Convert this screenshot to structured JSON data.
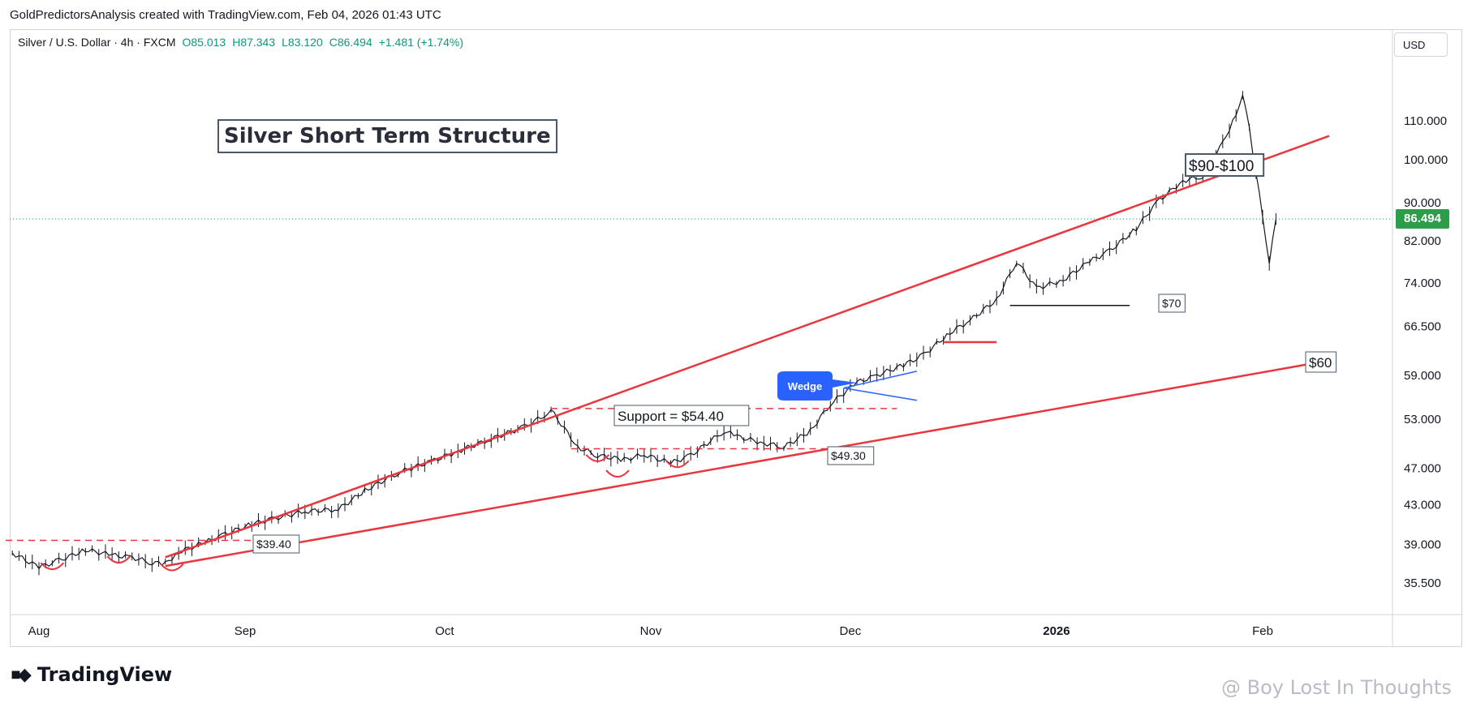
{
  "header": {
    "caption": "GoldPredictorsAnalysis created with TradingView.com, Feb 04, 2026 01:43 UTC"
  },
  "legend": {
    "symbol": "Silver / U.S. Dollar · 4h · FXCM",
    "open": "O85.013",
    "high": "H87.343",
    "low": "L83.120",
    "close": "C86.494",
    "change": "+1.481 (+1.74%)"
  },
  "currency_button": "USD",
  "last_price_label": "86.494",
  "brand": {
    "name": "TradingView"
  },
  "watermark": "@ Boy Lost In Thoughts",
  "colors": {
    "trendline": "#e8373e",
    "support": "#e8373e",
    "wedge": "#2962ff",
    "price_tag": "#2e9d4a",
    "candle_up": "#131722",
    "candle_down": "#131722"
  },
  "chart_data": {
    "type": "line",
    "title": "Silver Short Term Structure",
    "xlabel": "",
    "ylabel": "",
    "x_ticks": [
      "Aug",
      "Sep",
      "Oct",
      "Nov",
      "Dec",
      "2026",
      "Feb"
    ],
    "y_ticks": [
      35.5,
      39.0,
      43.0,
      47.0,
      53.0,
      59.0,
      66.5,
      74.0,
      82.0,
      90.0,
      100.0,
      110.0
    ],
    "y_tick_labels": [
      "35.500",
      "39.000",
      "43.000",
      "47.000",
      "53.000",
      "59.000",
      "66.500",
      "74.000",
      "82.000",
      "90.000",
      "100.000",
      "110.000"
    ],
    "ylim": [
      33.0,
      130.0
    ],
    "y_scale": "log",
    "grid": false,
    "series": [
      {
        "values_dates": [
          "2025-07-28",
          "2025-08-01",
          "2025-08-04",
          "2025-08-08",
          "2025-08-12",
          "2025-08-15",
          "2025-08-18",
          "2025-08-20",
          "2025-08-22",
          "2025-08-26",
          "2025-08-29",
          "2025-09-02",
          "2025-09-05",
          "2025-09-10",
          "2025-09-15",
          "2025-09-19",
          "2025-09-24",
          "2025-09-29",
          "2025-10-03",
          "2025-10-08",
          "2025-10-13",
          "2025-10-16",
          "2025-10-17",
          "2025-10-21",
          "2025-10-24",
          "2025-10-28",
          "2025-10-31",
          "2025-11-04",
          "2025-11-07",
          "2025-11-12",
          "2025-11-14",
          "2025-11-18",
          "2025-11-21",
          "2025-11-25",
          "2025-11-28",
          "2025-12-02",
          "2025-12-05",
          "2025-12-09",
          "2025-12-12",
          "2025-12-16",
          "2025-12-19",
          "2025-12-23",
          "2025-12-26",
          "2025-12-29",
          "2026-01-02",
          "2026-01-06",
          "2026-01-09",
          "2026-01-13",
          "2026-01-16",
          "2026-01-20",
          "2026-01-23",
          "2026-01-26",
          "2026-01-28",
          "2026-01-29",
          "2026-01-30",
          "2026-02-02",
          "2026-02-03"
        ],
        "values": [
          38.2,
          36.9,
          37.5,
          38.5,
          38.0,
          37.8,
          37.3,
          37.2,
          38.3,
          39.2,
          40.0,
          41.0,
          41.5,
          42.3,
          42.5,
          44.5,
          46.5,
          47.8,
          49.0,
          50.5,
          52.0,
          53.5,
          54.2,
          49.5,
          48.5,
          48.0,
          48.6,
          47.6,
          48.5,
          51.5,
          50.8,
          50.0,
          49.5,
          51.5,
          55.0,
          58.0,
          59.0,
          60.5,
          62.0,
          65.5,
          67.5,
          71.0,
          78.0,
          73.0,
          74.5,
          78.0,
          80.0,
          84.5,
          90.0,
          95.0,
          96.0,
          104.0,
          112.0,
          117.0,
          108.0,
          78.0,
          86.494
        ]
      }
    ],
    "annotations": [
      {
        "text": "Support = $54.40",
        "date": "2025-10-31",
        "value": 54.4
      },
      {
        "text": "$49.30",
        "date": "2025-11-29",
        "value": 49.3
      },
      {
        "text": "$39.40",
        "date": "2025-09-06",
        "value": 39.4
      },
      {
        "text": "$70",
        "date": "2026-01-12",
        "value": 70.0
      },
      {
        "text": "$60",
        "date": "2026-02-10",
        "value": 60.0
      },
      {
        "text": "$90-$100",
        "date": "2026-01-25",
        "value": 96.5
      },
      {
        "text": "Wedge",
        "date": "2025-11-26",
        "value": 57.5
      }
    ],
    "trendlines": [
      {
        "kind": "upper",
        "from": {
          "date": "2025-08-20",
          "value": 37.8
        },
        "to": {
          "date": "2026-02-11",
          "value": 106.0
        }
      },
      {
        "kind": "lower",
        "from": {
          "date": "2025-08-20",
          "value": 37.0
        },
        "to": {
          "date": "2026-02-10",
          "value": 61.0
        }
      }
    ],
    "levels": [
      {
        "value": 39.4,
        "from": "2025-07-27",
        "to": "2025-09-06",
        "style": "dashed"
      },
      {
        "value": 54.4,
        "from": "2025-10-17",
        "to": "2025-12-08",
        "style": "dashed"
      },
      {
        "value": 49.3,
        "from": "2025-10-20",
        "to": "2025-11-30",
        "style": "dashed"
      },
      {
        "value": 64.0,
        "from": "2025-12-15",
        "to": "2025-12-23",
        "style": "solid"
      },
      {
        "value": 70.0,
        "from": "2025-12-25",
        "to": "2026-01-12",
        "style": "solid-black"
      }
    ]
  }
}
